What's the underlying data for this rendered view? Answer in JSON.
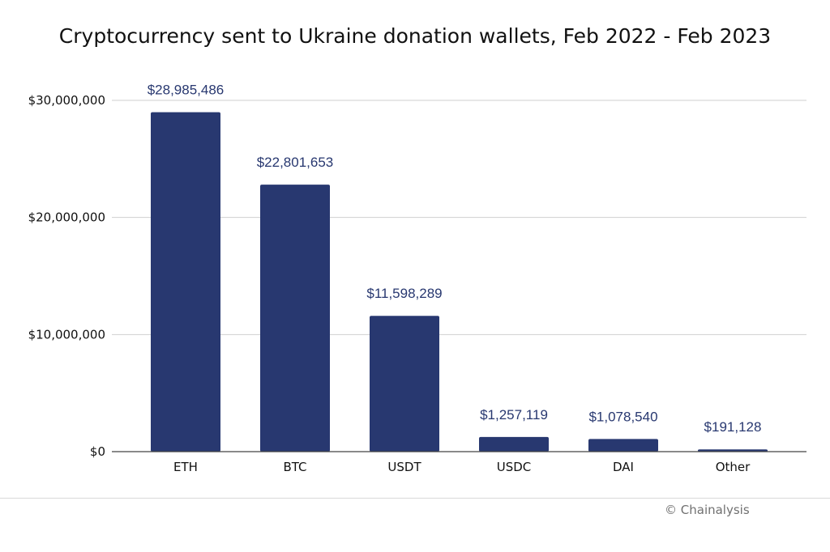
{
  "title": "Cryptocurrency sent to Ukraine donation wallets, Feb 2022 - Feb 2023",
  "credit": "© Chainalysis",
  "chart_data": {
    "type": "bar",
    "title": "Cryptocurrency sent to Ukraine donation wallets, Feb 2022 - Feb 2023",
    "categories": [
      "ETH",
      "BTC",
      "USDT",
      "USDC",
      "DAI",
      "Other"
    ],
    "values": [
      28985486,
      22801653,
      11598289,
      1257119,
      1078540,
      191128
    ],
    "value_labels": [
      "$28,985,486",
      "$22,801,653",
      "$11,598,289",
      "$1,257,119",
      "$1,078,540",
      "$191,128"
    ],
    "yticks": [
      0,
      10000000,
      20000000,
      30000000
    ],
    "ytick_labels": [
      "$0",
      "$10,000,000",
      "$20,000,000",
      "$30,000,000"
    ],
    "ylim": [
      0,
      30000000
    ],
    "xlabel": "",
    "ylabel": "",
    "grid": true,
    "bar_color": "#283870",
    "label_color": "#283870"
  }
}
